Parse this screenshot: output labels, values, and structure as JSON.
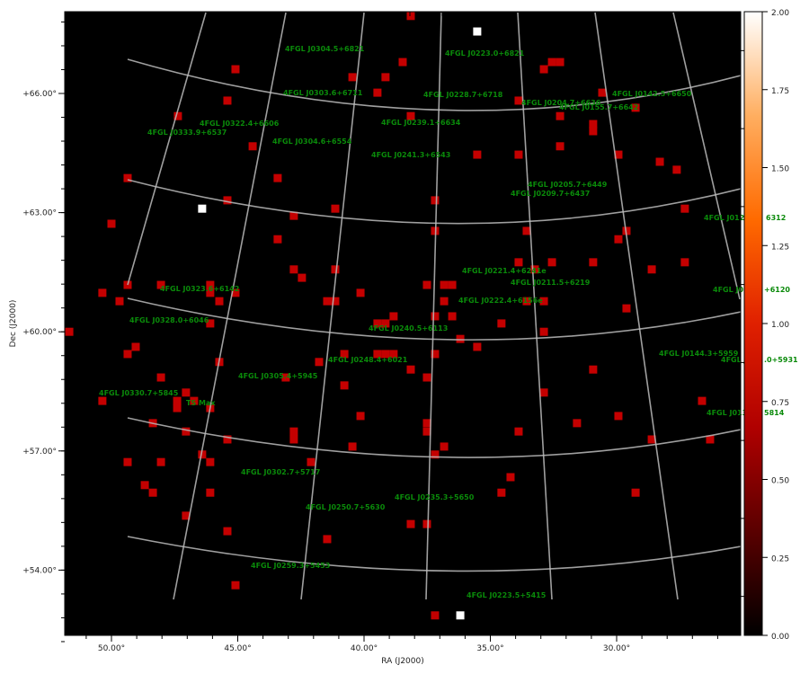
{
  "chart_data": {
    "type": "heatmap",
    "xlabel": "RA (J2000)",
    "ylabel": "Dec (J2000)",
    "xlim": [
      51.8,
      25.0
    ],
    "ylim": [
      52.2,
      68.1
    ],
    "x_ticks": [
      "50.00°",
      "45.00°",
      "40.00°",
      "35.00°",
      "30.00°"
    ],
    "x_tick_values": [
      50,
      45,
      40,
      35,
      30
    ],
    "y_ticks": [
      "+54.00°",
      "+57.00°",
      "+60.00°",
      "+63.00°",
      "+66.00°"
    ],
    "y_tick_values": [
      54,
      57,
      60,
      63,
      66
    ],
    "grid": true,
    "colormap": [
      "#000000",
      "#5a0000",
      "#b00000",
      "#e02000",
      "#ff6a00",
      "#ffae60",
      "#ffffff"
    ],
    "colorbar": {
      "range": [
        0,
        2
      ],
      "ticks": [
        "0.00",
        "0.25",
        "0.50",
        "0.75",
        "1.00",
        "1.25",
        "1.50",
        "1.75",
        "2.00"
      ],
      "tick_values": [
        0,
        0.25,
        0.5,
        0.75,
        1.0,
        1.25,
        1.5,
        1.75,
        2.0
      ],
      "placement": "right"
    },
    "pixels": [
      {
        "ra": 38.15,
        "dec": 67.95,
        "v": 1
      },
      {
        "ra": 45.09,
        "dec": 66.61,
        "v": 1
      },
      {
        "ra": 40.46,
        "dec": 66.41,
        "v": 1
      },
      {
        "ra": 39.15,
        "dec": 66.41,
        "v": 1
      },
      {
        "ra": 38.47,
        "dec": 66.79,
        "v": 1
      },
      {
        "ra": 32.56,
        "dec": 66.79,
        "v": 1
      },
      {
        "ra": 32.24,
        "dec": 66.79,
        "v": 1
      },
      {
        "ra": 32.88,
        "dec": 66.61,
        "v": 1
      },
      {
        "ra": 39.47,
        "dec": 66.02,
        "v": 1
      },
      {
        "ra": 30.57,
        "dec": 66.02,
        "v": 1
      },
      {
        "ra": 45.41,
        "dec": 65.82,
        "v": 1
      },
      {
        "ra": 33.88,
        "dec": 65.82,
        "v": 1
      },
      {
        "ra": 29.25,
        "dec": 65.64,
        "v": 1
      },
      {
        "ra": 47.37,
        "dec": 65.43,
        "v": 1
      },
      {
        "ra": 38.15,
        "dec": 65.43,
        "v": 1
      },
      {
        "ra": 32.24,
        "dec": 65.43,
        "v": 1
      },
      {
        "ra": 30.93,
        "dec": 65.23,
        "v": 1
      },
      {
        "ra": 30.93,
        "dec": 65.05,
        "v": 1
      },
      {
        "ra": 44.41,
        "dec": 64.67,
        "v": 1
      },
      {
        "ra": 32.24,
        "dec": 64.67,
        "v": 1
      },
      {
        "ra": 35.52,
        "dec": 64.46,
        "v": 1
      },
      {
        "ra": 33.88,
        "dec": 64.46,
        "v": 1
      },
      {
        "ra": 29.93,
        "dec": 64.46,
        "v": 1
      },
      {
        "ra": 28.29,
        "dec": 64.28,
        "v": 1
      },
      {
        "ra": 27.62,
        "dec": 64.08,
        "v": 1
      },
      {
        "ra": 49.36,
        "dec": 63.87,
        "v": 1
      },
      {
        "ra": 43.42,
        "dec": 63.87,
        "v": 1
      },
      {
        "ra": 45.41,
        "dec": 63.31,
        "v": 1
      },
      {
        "ra": 37.19,
        "dec": 63.31,
        "v": 1
      },
      {
        "ra": 41.14,
        "dec": 63.1,
        "v": 1
      },
      {
        "ra": 27.3,
        "dec": 63.1,
        "v": 1
      },
      {
        "ra": 50.0,
        "dec": 62.72,
        "v": 1
      },
      {
        "ra": 42.78,
        "dec": 62.92,
        "v": 1
      },
      {
        "ra": 37.19,
        "dec": 62.54,
        "v": 1
      },
      {
        "ra": 33.56,
        "dec": 62.54,
        "v": 1
      },
      {
        "ra": 29.61,
        "dec": 62.54,
        "v": 1
      },
      {
        "ra": 29.93,
        "dec": 62.33,
        "v": 1
      },
      {
        "ra": 43.42,
        "dec": 62.33,
        "v": 1
      },
      {
        "ra": 33.88,
        "dec": 61.75,
        "v": 1
      },
      {
        "ra": 32.56,
        "dec": 61.75,
        "v": 1
      },
      {
        "ra": 30.93,
        "dec": 61.75,
        "v": 1
      },
      {
        "ra": 27.3,
        "dec": 61.75,
        "v": 1
      },
      {
        "ra": 42.78,
        "dec": 61.57,
        "v": 1
      },
      {
        "ra": 41.14,
        "dec": 61.57,
        "v": 1
      },
      {
        "ra": 33.24,
        "dec": 61.57,
        "v": 1
      },
      {
        "ra": 28.61,
        "dec": 61.57,
        "v": 1
      },
      {
        "ra": 42.46,
        "dec": 61.36,
        "v": 1
      },
      {
        "ra": 49.36,
        "dec": 61.18,
        "v": 1
      },
      {
        "ra": 48.04,
        "dec": 61.18,
        "v": 1
      },
      {
        "ra": 46.09,
        "dec": 61.18,
        "v": 1
      },
      {
        "ra": 37.51,
        "dec": 61.18,
        "v": 1
      },
      {
        "ra": 36.83,
        "dec": 61.18,
        "v": 1
      },
      {
        "ra": 36.51,
        "dec": 61.18,
        "v": 1
      },
      {
        "ra": 50.36,
        "dec": 60.98,
        "v": 1
      },
      {
        "ra": 46.09,
        "dec": 60.98,
        "v": 1
      },
      {
        "ra": 45.09,
        "dec": 60.98,
        "v": 1
      },
      {
        "ra": 40.14,
        "dec": 60.98,
        "v": 1
      },
      {
        "ra": 49.68,
        "dec": 60.77,
        "v": 1
      },
      {
        "ra": 45.73,
        "dec": 60.77,
        "v": 1
      },
      {
        "ra": 41.46,
        "dec": 60.77,
        "v": 1
      },
      {
        "ra": 41.14,
        "dec": 60.77,
        "v": 1
      },
      {
        "ra": 36.83,
        "dec": 60.77,
        "v": 1
      },
      {
        "ra": 32.88,
        "dec": 60.77,
        "v": 1
      },
      {
        "ra": 33.56,
        "dec": 60.77,
        "v": 1
      },
      {
        "ra": 29.61,
        "dec": 60.59,
        "v": 1
      },
      {
        "ra": 38.83,
        "dec": 60.39,
        "v": 1
      },
      {
        "ra": 37.19,
        "dec": 60.39,
        "v": 1
      },
      {
        "ra": 36.51,
        "dec": 60.39,
        "v": 1
      },
      {
        "ra": 46.09,
        "dec": 60.21,
        "v": 1
      },
      {
        "ra": 39.47,
        "dec": 60.21,
        "v": 1
      },
      {
        "ra": 39.15,
        "dec": 60.21,
        "v": 1
      },
      {
        "ra": 34.56,
        "dec": 60.21,
        "v": 1
      },
      {
        "ra": 51.67,
        "dec": 60.0,
        "v": 1
      },
      {
        "ra": 32.88,
        "dec": 60.0,
        "v": 1
      },
      {
        "ra": 36.19,
        "dec": 59.82,
        "v": 1
      },
      {
        "ra": 49.04,
        "dec": 59.62,
        "v": 1
      },
      {
        "ra": 35.52,
        "dec": 59.62,
        "v": 1
      },
      {
        "ra": 49.36,
        "dec": 59.44,
        "v": 1
      },
      {
        "ra": 40.78,
        "dec": 59.44,
        "v": 1
      },
      {
        "ra": 39.47,
        "dec": 59.44,
        "v": 1
      },
      {
        "ra": 39.15,
        "dec": 59.44,
        "v": 1
      },
      {
        "ra": 38.83,
        "dec": 59.44,
        "v": 1
      },
      {
        "ra": 37.19,
        "dec": 59.44,
        "v": 1
      },
      {
        "ra": 45.73,
        "dec": 59.24,
        "v": 1
      },
      {
        "ra": 41.78,
        "dec": 59.24,
        "v": 1
      },
      {
        "ra": 38.15,
        "dec": 59.05,
        "v": 1
      },
      {
        "ra": 30.93,
        "dec": 59.05,
        "v": 1
      },
      {
        "ra": 48.04,
        "dec": 58.85,
        "v": 1
      },
      {
        "ra": 43.1,
        "dec": 58.85,
        "v": 1
      },
      {
        "ra": 37.51,
        "dec": 58.85,
        "v": 1
      },
      {
        "ra": 40.78,
        "dec": 58.65,
        "v": 1
      },
      {
        "ra": 47.05,
        "dec": 58.47,
        "v": 1
      },
      {
        "ra": 32.88,
        "dec": 58.47,
        "v": 1
      },
      {
        "ra": 50.36,
        "dec": 58.26,
        "v": 1
      },
      {
        "ra": 46.73,
        "dec": 58.26,
        "v": 1
      },
      {
        "ra": 47.4,
        "dec": 58.26,
        "v": 1
      },
      {
        "ra": 47.4,
        "dec": 58.08,
        "v": 1
      },
      {
        "ra": 46.09,
        "dec": 58.08,
        "v": 1
      },
      {
        "ra": 26.62,
        "dec": 58.26,
        "v": 1
      },
      {
        "ra": 40.14,
        "dec": 57.88,
        "v": 1
      },
      {
        "ra": 29.93,
        "dec": 57.88,
        "v": 1
      },
      {
        "ra": 48.36,
        "dec": 57.7,
        "v": 1
      },
      {
        "ra": 37.51,
        "dec": 57.7,
        "v": 1
      },
      {
        "ra": 31.57,
        "dec": 57.7,
        "v": 1
      },
      {
        "ra": 37.51,
        "dec": 57.49,
        "v": 1
      },
      {
        "ra": 47.05,
        "dec": 57.49,
        "v": 1
      },
      {
        "ra": 42.78,
        "dec": 57.49,
        "v": 1
      },
      {
        "ra": 33.88,
        "dec": 57.49,
        "v": 1
      },
      {
        "ra": 42.78,
        "dec": 57.29,
        "v": 1
      },
      {
        "ra": 45.41,
        "dec": 57.29,
        "v": 1
      },
      {
        "ra": 28.61,
        "dec": 57.29,
        "v": 1
      },
      {
        "ra": 26.3,
        "dec": 57.29,
        "v": 1
      },
      {
        "ra": 40.46,
        "dec": 57.11,
        "v": 1
      },
      {
        "ra": 36.83,
        "dec": 57.11,
        "v": 1
      },
      {
        "ra": 46.41,
        "dec": 56.91,
        "v": 1
      },
      {
        "ra": 37.19,
        "dec": 56.91,
        "v": 1
      },
      {
        "ra": 49.36,
        "dec": 56.72,
        "v": 1
      },
      {
        "ra": 48.04,
        "dec": 56.72,
        "v": 1
      },
      {
        "ra": 46.09,
        "dec": 56.72,
        "v": 1
      },
      {
        "ra": 42.1,
        "dec": 56.72,
        "v": 1
      },
      {
        "ra": 34.2,
        "dec": 56.34,
        "v": 1
      },
      {
        "ra": 48.68,
        "dec": 56.14,
        "v": 1
      },
      {
        "ra": 48.36,
        "dec": 55.95,
        "v": 1
      },
      {
        "ra": 46.09,
        "dec": 55.95,
        "v": 1
      },
      {
        "ra": 34.56,
        "dec": 55.95,
        "v": 1
      },
      {
        "ra": 29.25,
        "dec": 55.95,
        "v": 1
      },
      {
        "ra": 47.05,
        "dec": 55.37,
        "v": 1
      },
      {
        "ra": 38.15,
        "dec": 55.16,
        "v": 1
      },
      {
        "ra": 37.51,
        "dec": 55.16,
        "v": 1
      },
      {
        "ra": 45.41,
        "dec": 54.98,
        "v": 1
      },
      {
        "ra": 41.46,
        "dec": 54.78,
        "v": 1
      },
      {
        "ra": 45.09,
        "dec": 53.62,
        "v": 1
      },
      {
        "ra": 37.19,
        "dec": 52.86,
        "v": 1
      },
      {
        "ra": 35.52,
        "dec": 67.56,
        "v": 2
      },
      {
        "ra": 46.41,
        "dec": 63.1,
        "v": 2
      },
      {
        "ra": 36.19,
        "dec": 52.86,
        "v": 2
      }
    ],
    "annotations": [
      "4FGL J0304.5+6821",
      "4FGL J0223.0+6821",
      "4FGL J0303.6+6711",
      "4FGL J0228.7+6718",
      "4FGL J0204.7+6636",
      "4FGL J0142.5+6650",
      "4FGL J0155.7+6642",
      "4FGL J0322.4+6606",
      "4FGL J0239.1+6634",
      "4FGL J0333.9+6537",
      "4FGL J0304.6+6554",
      "4FGL J0241.3+6543",
      "4FGL J0205.7+6449",
      "4FGL J0209.7+6437",
      "4FGL J012",
      "6312",
      "4FGL J0221.4+6241e",
      "4FGL J0211.5+6219",
      "4FGL J0222.4+6156e",
      "4FGL J0323.6+6142",
      "4FGL J0328.0+6046",
      "4FGL J0240.5+6113",
      "4FGL J0248.4+6021",
      "4FGL J0305.4+5945",
      "4FGL J0144.3+5959",
      "4FGL J0330.7+5845",
      "TS Max",
      "4FGL J0302.7+5717",
      "4FGL J0235.3+5650",
      "4FGL J0250.7+5630",
      "4FGL J0259.3+5453",
      "4FGL J0223.5+5415",
      "4FGL J0",
      "+6120",
      "4FGL J",
      ".0+5931",
      "4FGL J013",
      "5814"
    ],
    "annotation_color": "#0a8a0a"
  }
}
